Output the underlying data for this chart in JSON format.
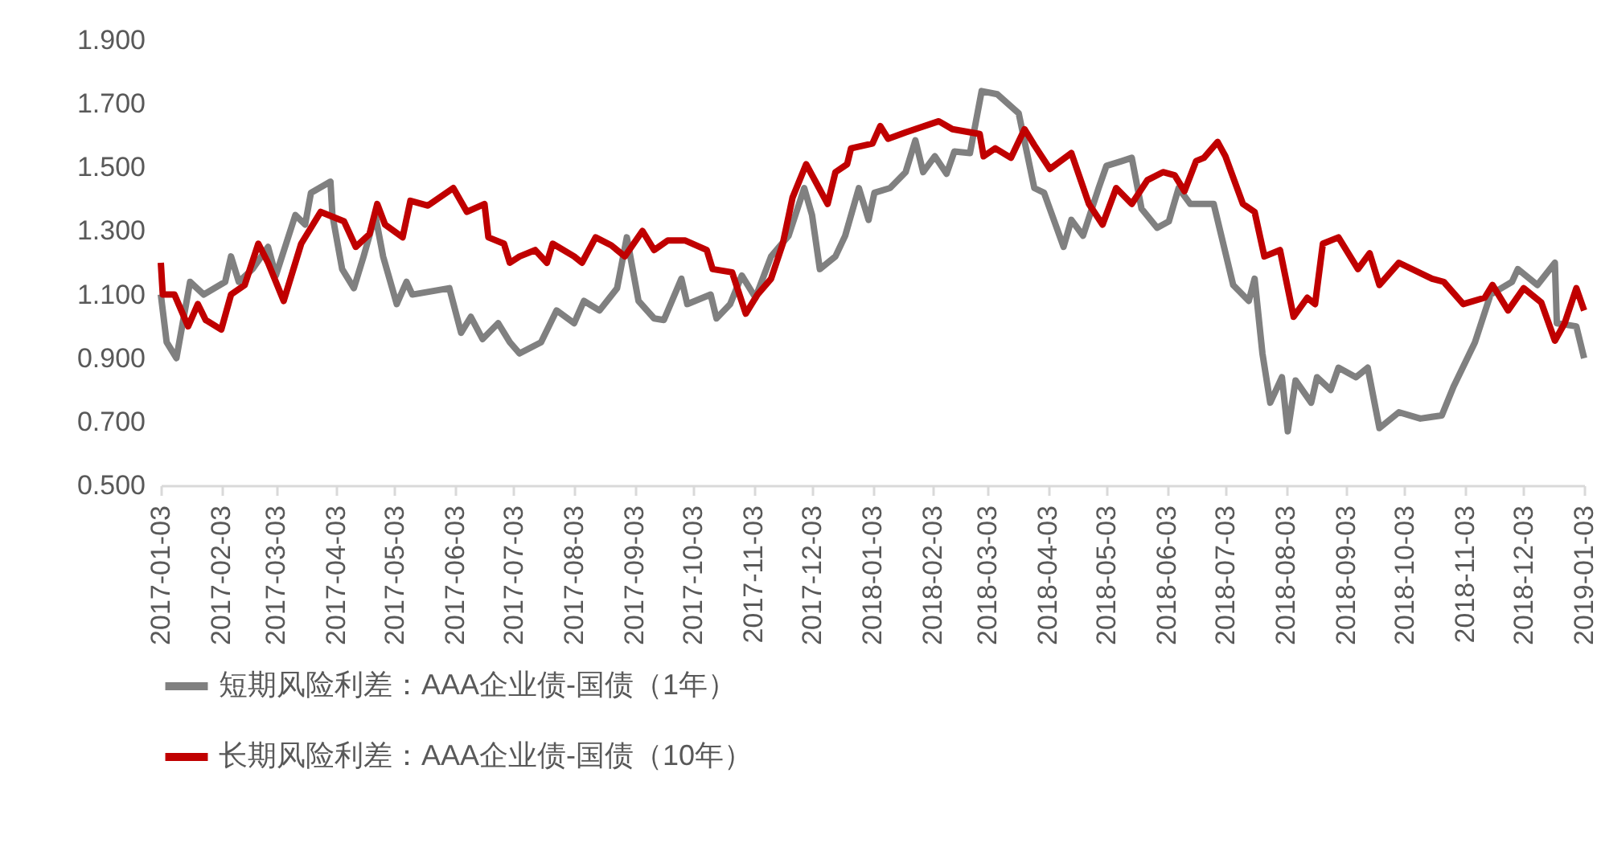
{
  "chart_data": {
    "type": "line",
    "legend": "bottom",
    "line_style": "solid",
    "marker": "none",
    "grid": false,
    "xlim": [
      "2017-01-03",
      "2019-01-03"
    ],
    "xticks": [
      "2017-01-03",
      "2017-02-03",
      "2017-03-03",
      "2017-04-03",
      "2017-05-03",
      "2017-06-03",
      "2017-07-03",
      "2017-08-03",
      "2017-09-03",
      "2017-10-03",
      "2017-11-03",
      "2017-12-03",
      "2018-01-03",
      "2018-02-03",
      "2018-03-03",
      "2018-04-03",
      "2018-05-03",
      "2018-06-03",
      "2018-07-03",
      "2018-08-03",
      "2018-09-03",
      "2018-10-03",
      "2018-11-03",
      "2018-12-03",
      "2019-01-03"
    ],
    "ylim": [
      0.5,
      1.9
    ],
    "yticks": [
      {
        "value": 0.5,
        "label": "0.500"
      },
      {
        "value": 0.7,
        "label": "0.700"
      },
      {
        "value": 0.9,
        "label": "0.900"
      },
      {
        "value": 1.1,
        "label": "1.100"
      },
      {
        "value": 1.3,
        "label": "1.300"
      },
      {
        "value": 1.5,
        "label": "1.500"
      },
      {
        "value": 1.7,
        "label": "1.700"
      },
      {
        "value": 1.9,
        "label": "1.900"
      }
    ],
    "series": [
      {
        "name": "短期风险利差：AAA企业债-国债（1年）",
        "color": "#808080",
        "x": [
          "2017-01-03",
          "2017-01-06",
          "2017-01-11",
          "2017-01-18",
          "2017-01-25",
          "2017-02-05",
          "2017-02-08",
          "2017-02-12",
          "2017-02-19",
          "2017-02-27",
          "2017-03-03",
          "2017-03-13",
          "2017-03-18",
          "2017-03-21",
          "2017-03-31",
          "2017-04-01",
          "2017-04-06",
          "2017-04-12",
          "2017-04-17",
          "2017-04-23",
          "2017-04-27",
          "2017-05-04",
          "2017-05-09",
          "2017-05-12",
          "2017-05-31",
          "2017-06-06",
          "2017-06-11",
          "2017-06-17",
          "2017-06-25",
          "2017-07-01",
          "2017-07-06",
          "2017-07-17",
          "2017-07-25",
          "2017-08-03",
          "2017-08-08",
          "2017-08-16",
          "2017-08-25",
          "2017-08-30",
          "2017-09-05",
          "2017-09-13",
          "2017-09-18",
          "2017-09-27",
          "2017-09-30",
          "2017-10-12",
          "2017-10-15",
          "2017-10-22",
          "2017-10-28",
          "2017-11-04",
          "2017-11-12",
          "2017-11-21",
          "2017-11-29",
          "2017-12-03",
          "2017-12-07",
          "2017-12-15",
          "2017-12-20",
          "2017-12-27",
          "2018-01-01",
          "2018-01-04",
          "2018-01-12",
          "2018-01-20",
          "2018-01-25",
          "2018-01-29",
          "2018-02-04",
          "2018-02-10",
          "2018-02-14",
          "2018-02-22",
          "2018-02-28",
          "2018-03-08",
          "2018-03-19",
          "2018-03-27",
          "2018-04-01",
          "2018-04-11",
          "2018-04-15",
          "2018-04-21",
          "2018-04-29",
          "2018-05-03",
          "2018-05-11",
          "2018-05-16",
          "2018-05-21",
          "2018-05-29",
          "2018-06-04",
          "2018-06-09",
          "2018-06-15",
          "2018-06-27",
          "2018-07-07",
          "2018-07-15",
          "2018-07-18",
          "2018-07-22",
          "2018-07-26",
          "2018-08-01",
          "2018-08-04",
          "2018-08-08",
          "2018-08-16",
          "2018-08-19",
          "2018-08-26",
          "2018-08-30",
          "2018-09-08",
          "2018-09-14",
          "2018-09-20",
          "2018-09-30",
          "2018-10-11",
          "2018-10-22",
          "2018-10-28",
          "2018-11-08",
          "2018-11-16",
          "2018-11-27",
          "2018-11-30",
          "2018-12-10",
          "2018-12-19",
          "2018-12-20",
          "2018-12-30",
          "2019-01-03"
        ],
        "values": [
          1.1,
          0.95,
          0.9,
          1.14,
          1.1,
          1.14,
          1.22,
          1.14,
          1.18,
          1.25,
          1.16,
          1.35,
          1.32,
          1.42,
          1.455,
          1.35,
          1.18,
          1.12,
          1.22,
          1.35,
          1.22,
          1.07,
          1.14,
          1.1,
          1.12,
          0.98,
          1.03,
          0.96,
          1.01,
          0.95,
          0.915,
          0.95,
          1.05,
          1.01,
          1.08,
          1.05,
          1.12,
          1.28,
          1.08,
          1.025,
          1.02,
          1.15,
          1.07,
          1.1,
          1.025,
          1.07,
          1.16,
          1.09,
          1.22,
          1.285,
          1.435,
          1.35,
          1.18,
          1.22,
          1.285,
          1.435,
          1.335,
          1.42,
          1.435,
          1.485,
          1.585,
          1.485,
          1.535,
          1.48,
          1.55,
          1.545,
          1.74,
          1.73,
          1.67,
          1.435,
          1.42,
          1.25,
          1.335,
          1.285,
          1.435,
          1.505,
          1.52,
          1.53,
          1.37,
          1.31,
          1.33,
          1.435,
          1.385,
          1.385,
          1.13,
          1.08,
          1.15,
          0.915,
          0.76,
          0.84,
          0.67,
          0.83,
          0.76,
          0.84,
          0.8,
          0.87,
          0.84,
          0.87,
          0.68,
          0.73,
          0.71,
          0.72,
          0.81,
          0.95,
          1.1,
          1.14,
          1.18,
          1.13,
          1.2,
          1.01,
          1.0,
          0.9
        ]
      },
      {
        "name": "长期风险利差：AAA企业债-国债（10年）",
        "color": "#c00000",
        "x": [
          "2017-01-03",
          "2017-01-04",
          "2017-01-10",
          "2017-01-17",
          "2017-01-22",
          "2017-01-26",
          "2017-02-03",
          "2017-02-08",
          "2017-02-15",
          "2017-02-22",
          "2017-02-27",
          "2017-03-07",
          "2017-03-16",
          "2017-03-26",
          "2017-04-07",
          "2017-04-13",
          "2017-04-20",
          "2017-04-24",
          "2017-04-28",
          "2017-05-07",
          "2017-05-11",
          "2017-05-20",
          "2017-06-02",
          "2017-06-09",
          "2017-06-18",
          "2017-06-20",
          "2017-06-28",
          "2017-07-01",
          "2017-07-06",
          "2017-07-14",
          "2017-07-20",
          "2017-07-23",
          "2017-08-03",
          "2017-08-07",
          "2017-08-14",
          "2017-08-22",
          "2017-08-29",
          "2017-09-07",
          "2017-09-13",
          "2017-09-20",
          "2017-09-29",
          "2017-10-10",
          "2017-10-13",
          "2017-10-23",
          "2017-10-30",
          "2017-11-05",
          "2017-11-12",
          "2017-11-18",
          "2017-11-23",
          "2017-11-30",
          "2017-12-11",
          "2017-12-15",
          "2017-12-21",
          "2017-12-23",
          "2018-01-03",
          "2018-01-07",
          "2018-01-11",
          "2018-01-20",
          "2018-02-06",
          "2018-02-13",
          "2018-02-27",
          "2018-03-01",
          "2018-03-07",
          "2018-03-15",
          "2018-03-22",
          "2018-03-27",
          "2018-04-04",
          "2018-04-15",
          "2018-04-24",
          "2018-05-01",
          "2018-05-08",
          "2018-05-16",
          "2018-05-24",
          "2018-06-01",
          "2018-06-07",
          "2018-06-12",
          "2018-06-18",
          "2018-06-22",
          "2018-06-29",
          "2018-07-03",
          "2018-07-12",
          "2018-07-18",
          "2018-07-23",
          "2018-07-31",
          "2018-08-07",
          "2018-08-14",
          "2018-08-18",
          "2018-08-22",
          "2018-08-30",
          "2018-09-09",
          "2018-09-15",
          "2018-09-20",
          "2018-09-30",
          "2018-10-17",
          "2018-10-23",
          "2018-11-02",
          "2018-11-13",
          "2018-11-17",
          "2018-11-25",
          "2018-12-03",
          "2018-12-12",
          "2018-12-19",
          "2018-12-24",
          "2018-12-30",
          "2019-01-03"
        ],
        "values": [
          1.2,
          1.1,
          1.1,
          1.0,
          1.07,
          1.02,
          0.99,
          1.1,
          1.13,
          1.26,
          1.2,
          1.08,
          1.26,
          1.36,
          1.33,
          1.25,
          1.29,
          1.385,
          1.32,
          1.28,
          1.395,
          1.38,
          1.435,
          1.36,
          1.385,
          1.28,
          1.26,
          1.2,
          1.22,
          1.24,
          1.2,
          1.26,
          1.22,
          1.2,
          1.28,
          1.255,
          1.22,
          1.3,
          1.24,
          1.27,
          1.27,
          1.24,
          1.18,
          1.17,
          1.04,
          1.1,
          1.15,
          1.26,
          1.405,
          1.51,
          1.385,
          1.485,
          1.51,
          1.56,
          1.575,
          1.63,
          1.59,
          1.61,
          1.645,
          1.62,
          1.605,
          1.535,
          1.56,
          1.53,
          1.62,
          1.57,
          1.495,
          1.545,
          1.385,
          1.32,
          1.435,
          1.385,
          1.46,
          1.485,
          1.475,
          1.425,
          1.52,
          1.53,
          1.58,
          1.535,
          1.385,
          1.36,
          1.22,
          1.24,
          1.03,
          1.09,
          1.07,
          1.26,
          1.28,
          1.18,
          1.23,
          1.13,
          1.2,
          1.15,
          1.14,
          1.07,
          1.09,
          1.13,
          1.05,
          1.12,
          1.075,
          0.955,
          1.01,
          1.12,
          1.05
        ]
      }
    ]
  }
}
